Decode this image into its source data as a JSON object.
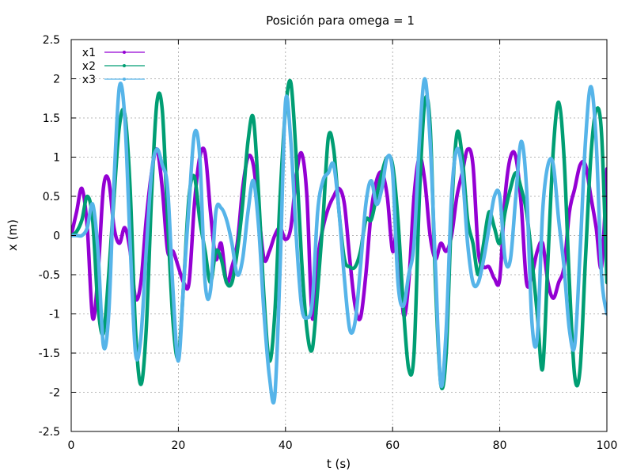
{
  "chart_data": {
    "type": "line",
    "title": "Posición para omega = 1",
    "xlabel": "t (s)",
    "ylabel": "x (m)",
    "xlim": [
      0,
      100
    ],
    "ylim": [
      -2.5,
      2.5
    ],
    "x_ticks": [
      "0",
      "20",
      "40",
      "60",
      "80",
      "100"
    ],
    "y_ticks": [
      "-2.5",
      "-2",
      "-1.5",
      "-1",
      "-0.5",
      "0",
      "0.5",
      "1",
      "1.5",
      "2",
      "2.5"
    ],
    "grid": true,
    "legend_position": "top-left",
    "x": [
      0,
      1,
      2,
      3,
      4,
      5,
      6,
      7,
      8,
      9,
      10,
      11,
      12,
      13,
      14,
      15,
      16,
      17,
      18,
      19,
      20,
      21,
      22,
      23,
      24,
      25,
      26,
      27,
      28,
      29,
      30,
      31,
      32,
      33,
      34,
      35,
      36,
      37,
      38,
      39,
      40,
      41,
      42,
      43,
      44,
      45,
      46,
      47,
      48,
      49,
      50,
      51,
      52,
      53,
      54,
      55,
      56,
      57,
      58,
      59,
      60,
      61,
      62,
      63,
      64,
      65,
      66,
      67,
      68,
      69,
      70,
      71,
      72,
      73,
      74,
      75,
      76,
      77,
      78,
      79,
      80,
      81,
      82,
      83,
      84,
      85,
      86,
      87,
      88,
      89,
      90,
      91,
      92,
      93,
      94,
      95,
      96,
      97,
      98,
      99,
      100
    ],
    "series": [
      {
        "name": "x1",
        "color": "#9400d3",
        "values": [
          0,
          0.3,
          0.6,
          0.1,
          -1.05,
          -0.5,
          0.6,
          0.7,
          0.1,
          -0.1,
          0.1,
          -0.2,
          -0.8,
          -0.6,
          0.2,
          0.8,
          1.1,
          0.6,
          -0.2,
          -0.2,
          -0.4,
          -0.6,
          -0.6,
          0.4,
          1.0,
          1.05,
          0.3,
          -0.3,
          -0.1,
          -0.6,
          -0.4,
          -0.1,
          0.6,
          1.0,
          0.9,
          0.3,
          -0.3,
          -0.2,
          0,
          0.1,
          -0.05,
          0.1,
          0.75,
          1.05,
          0.5,
          -1.05,
          -0.3,
          0.1,
          0.35,
          0.5,
          0.6,
          0.4,
          -0.3,
          -0.9,
          -1.05,
          -0.5,
          0.3,
          0.7,
          0.8,
          0.5,
          -0.2,
          0.1,
          -1.0,
          -0.6,
          0.5,
          1.0,
          0.7,
          0,
          -0.3,
          -0.1,
          -0.2,
          0,
          0.5,
          0.8,
          1.1,
          0.9,
          -0.2,
          -0.4,
          -0.4,
          -0.55,
          -0.55,
          0.5,
          1.0,
          1.0,
          0.4,
          -0.6,
          -0.5,
          -0.2,
          -0.1,
          -0.6,
          -0.8,
          -0.6,
          -0.4,
          0.3,
          0.6,
          0.9,
          0.9,
          0.5,
          0.1,
          -0.4,
          0.85
        ]
      },
      {
        "name": "x2",
        "color": "#009e73",
        "values": [
          0,
          0.05,
          0.2,
          0.5,
          0.2,
          -0.9,
          -1.25,
          -0.5,
          0.5,
          1.4,
          1.55,
          0.6,
          -1.2,
          -1.9,
          -1.2,
          0.5,
          1.7,
          1.6,
          0.2,
          -1.1,
          -1.55,
          -0.6,
          0.5,
          0.75,
          0.2,
          -0.2,
          -0.6,
          -0.2,
          -0.3,
          -0.6,
          -0.6,
          -0.2,
          0.4,
          1.2,
          1.5,
          0.5,
          -0.8,
          -1.6,
          -1.0,
          0.5,
          1.6,
          1.95,
          1.0,
          -0.3,
          -1.2,
          -1.45,
          -0.7,
          0.2,
          1.25,
          1.1,
          0.3,
          -0.3,
          -0.4,
          -0.4,
          -0.2,
          0.2,
          0.2,
          0.5,
          0.8,
          1.0,
          0.9,
          0.2,
          -0.9,
          -1.7,
          -1.5,
          0.5,
          1.7,
          1.4,
          -0.6,
          -1.9,
          -1.5,
          0.3,
          1.3,
          1.0,
          0.2,
          -0.1,
          -0.5,
          -0.1,
          0.3,
          0.1,
          -0.1,
          0.3,
          0.6,
          0.8,
          0.6,
          0.3,
          -0.3,
          -1.0,
          -1.7,
          -0.3,
          1.1,
          1.7,
          1.0,
          -0.6,
          -1.8,
          -1.7,
          -0.3,
          1.0,
          1.6,
          1.3,
          -0.6
        ]
      },
      {
        "name": "x3",
        "color": "#56b4e9",
        "values": [
          0,
          0,
          0,
          0.1,
          0.4,
          -0.2,
          -1.4,
          -1.0,
          0.7,
          1.9,
          1.5,
          -0.1,
          -1.5,
          -1.3,
          -0.2,
          0.8,
          1.1,
          0.9,
          0.6,
          -0.7,
          -1.6,
          -0.6,
          0.4,
          1.3,
          1.0,
          -0.6,
          -0.7,
          0.3,
          0.35,
          0.2,
          -0.1,
          -0.5,
          -0.3,
          0.3,
          0.7,
          0.1,
          -1.0,
          -1.8,
          -2.05,
          -0.4,
          1.7,
          1.2,
          0,
          -0.9,
          -1.05,
          -0.85,
          0.3,
          0.7,
          0.8,
          0.9,
          0.3,
          -0.55,
          -1.2,
          -1.1,
          -0.4,
          0.4,
          0.7,
          0.4,
          0.6,
          1.0,
          0.8,
          -0.6,
          -0.9,
          -0.5,
          -0.1,
          1.2,
          2.0,
          1.2,
          -0.4,
          -1.9,
          -1.2,
          0.5,
          1.1,
          0.8,
          -0.1,
          -0.6,
          -0.6,
          -0.3,
          0.1,
          0.5,
          0.5,
          -0.3,
          -0.3,
          0.5,
          1.2,
          0.6,
          -1.1,
          -1.3,
          0.3,
          0.9,
          0.9,
          0.2,
          -0.4,
          -1.2,
          -1.4,
          -0.2,
          1.2,
          1.9,
          1.2,
          -0.5,
          -1.0
        ]
      }
    ]
  }
}
